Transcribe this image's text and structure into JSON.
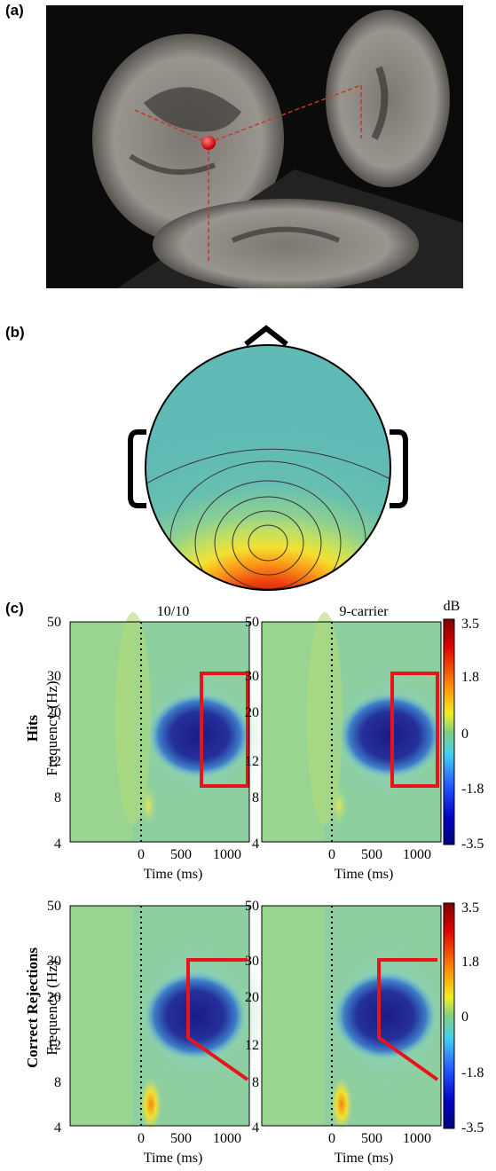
{
  "panels": {
    "a": {
      "label": "(a)"
    },
    "b": {
      "label": "(b)"
    },
    "c": {
      "label": "(c)"
    }
  },
  "columns": [
    "10/10",
    "9-carrier"
  ],
  "rows": [
    {
      "title": "Hits",
      "ylabel": "Frequency (Hz)"
    },
    {
      "title": "Correct Rejections",
      "ylabel": "Frequency (Hz)"
    }
  ],
  "yticks": [
    "50",
    "30",
    "20",
    "12",
    "8",
    "4"
  ],
  "xticks": [
    "0",
    "500",
    "1000"
  ],
  "xlabel": "Time (ms)",
  "colorbar": {
    "unit": "dB",
    "ticks": [
      "3.5",
      "1.8",
      "0",
      "-1.8",
      "-3.5"
    ]
  },
  "colors": {
    "roi": "#e8141b",
    "background": "#62b8a8"
  }
}
